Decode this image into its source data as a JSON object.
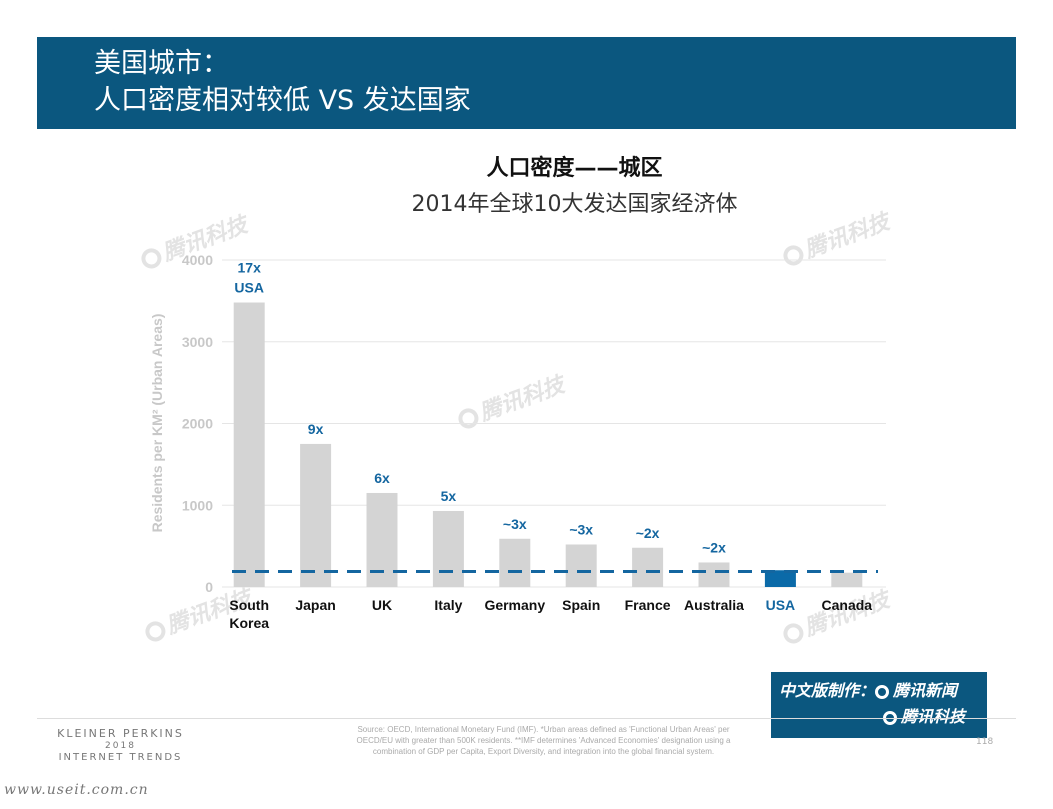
{
  "header": {
    "title_line1": "美国城市：",
    "title_line2": "人口密度相对较低 VS 发达国家"
  },
  "chart_data": {
    "type": "bar",
    "title": "人口密度——城区",
    "subtitle": "2014年全球10大发达国家经济体",
    "ylabel": "Residents per KM² (Urban Areas)",
    "ylim": [
      0,
      4000
    ],
    "yticks": [
      0,
      1000,
      2000,
      3000,
      4000
    ],
    "grid": true,
    "categories": [
      "South\nKorea",
      "Japan",
      "UK",
      "Italy",
      "Germany",
      "Spain",
      "France",
      "Australia",
      "USA",
      "Canada"
    ],
    "values": [
      3480,
      1750,
      1150,
      930,
      590,
      520,
      480,
      300,
      205,
      175
    ],
    "multiples": [
      "17x\nUSA",
      "9x",
      "6x",
      "5x",
      "~3x",
      "~3x",
      "~2x",
      "~2x",
      "",
      ""
    ],
    "reference_value": 190,
    "colors": {
      "bar": "#d4d4d4",
      "highlight_bar": "#0b6aa8",
      "highlight_category": "USA",
      "label": "#1466a0",
      "reference_line": "#1466a0",
      "grid": "#e5e5e5",
      "axis_text": "#c8c8c8"
    }
  },
  "credit": {
    "line1": "中文版制作：",
    "org1": "腾讯新闻",
    "org2": "腾讯科技"
  },
  "watermark_text": "腾讯科技",
  "footer": {
    "brand_line1": "KLEINER PERKINS",
    "brand_line2": "2018",
    "brand_line3": "INTERNET TRENDS",
    "source_line1": "Source: OECD, International Monetary Fund (IMF). *Urban areas defined as 'Functional Urban Areas' per",
    "source_line2": "OECD/EU with greater than 500K residents. **IMF determines 'Advanced Economies' designation using a",
    "source_line3": "combination of GDP per Capita, Export Diversity, and integration into the global financial system.",
    "page_number": "118",
    "url": "www.useit.com.cn"
  }
}
